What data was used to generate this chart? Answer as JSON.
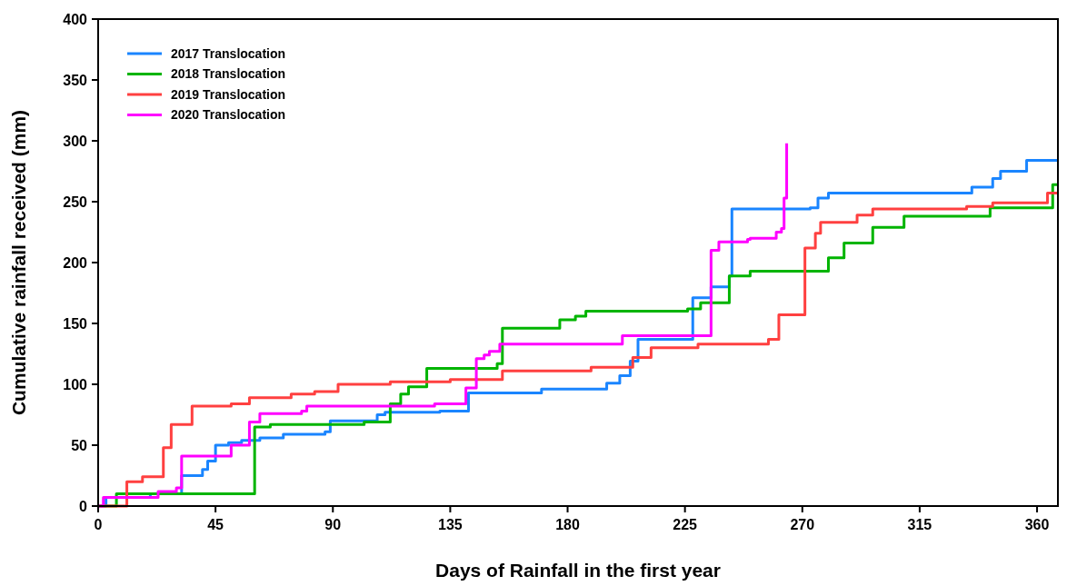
{
  "chart_data": {
    "type": "step",
    "xlabel": "Days of Rainfall in the first year",
    "ylabel": "Cumulative rainfall received (mm)",
    "xlim": [
      0,
      368
    ],
    "xticks": [
      0,
      45,
      90,
      135,
      180,
      225,
      270,
      315,
      360
    ],
    "ylim": [
      0,
      400
    ],
    "yticks": [
      0,
      50,
      100,
      150,
      200,
      250,
      300,
      350,
      400
    ],
    "grid": false,
    "legend": "top left",
    "series": [
      {
        "name": "2017 Translocation",
        "color": "#1a85ff",
        "x": [
          0,
          3,
          20,
          32,
          40,
          42,
          45,
          50,
          55,
          62,
          71,
          87,
          89,
          107,
          110,
          131,
          142,
          170,
          195,
          200,
          204,
          207,
          224,
          228,
          235,
          242,
          243,
          273,
          276,
          280,
          333,
          335,
          343,
          346,
          356,
          368
        ],
        "values": [
          0,
          7,
          10,
          25,
          30,
          37,
          50,
          52,
          54,
          56,
          59,
          61,
          70,
          75,
          77,
          78,
          93,
          96,
          101,
          107,
          119,
          137,
          137,
          171,
          180,
          189,
          244,
          245,
          253,
          257,
          257,
          262,
          269,
          275,
          284,
          284
        ]
      },
      {
        "name": "2018 Translocation",
        "color": "#00b400",
        "x": [
          0,
          7,
          59,
          60,
          66,
          102,
          110,
          112,
          116,
          119,
          126,
          152,
          153,
          155,
          176,
          177,
          183,
          187,
          226,
          231,
          241,
          242,
          250,
          278,
          280,
          286,
          297,
          309,
          341,
          342,
          363,
          366,
          368
        ],
        "values": [
          0,
          10,
          10,
          65,
          67,
          69,
          69,
          84,
          92,
          98,
          113,
          113,
          117,
          146,
          146,
          153,
          156,
          160,
          162,
          167,
          167,
          189,
          193,
          193,
          204,
          216,
          229,
          238,
          238,
          245,
          245,
          264,
          264
        ]
      },
      {
        "name": "2019 Translocation",
        "color": "#ff4040",
        "x": [
          0,
          8,
          11,
          17,
          22,
          25,
          28,
          35,
          36,
          51,
          58,
          74,
          83,
          92,
          112,
          135,
          155,
          189,
          205,
          212,
          230,
          257,
          261,
          270,
          271,
          275,
          277,
          291,
          297,
          333,
          343,
          362,
          364,
          368
        ],
        "values": [
          0,
          0,
          20,
          24,
          24,
          48,
          67,
          67,
          82,
          84,
          89,
          92,
          94,
          100,
          102,
          104,
          111,
          114,
          122,
          130,
          133,
          137,
          157,
          157,
          212,
          224,
          233,
          239,
          244,
          246,
          249,
          249,
          257,
          258
        ]
      },
      {
        "name": "2020 Translocation",
        "color": "#ff00ff",
        "x": [
          0,
          2,
          20,
          23,
          30,
          32,
          49,
          51,
          56,
          58,
          62,
          78,
          80,
          128,
          129,
          140,
          141,
          145,
          148,
          150,
          154,
          200,
          201,
          234,
          235,
          238,
          249,
          250,
          259,
          260,
          262,
          263,
          264
        ],
        "values": [
          0,
          7,
          7,
          12,
          15,
          41,
          41,
          50,
          50,
          69,
          76,
          78,
          82,
          82,
          84,
          84,
          97,
          121,
          124,
          127,
          133,
          133,
          140,
          140,
          210,
          217,
          219,
          220,
          220,
          225,
          228,
          253,
          298
        ]
      }
    ]
  }
}
